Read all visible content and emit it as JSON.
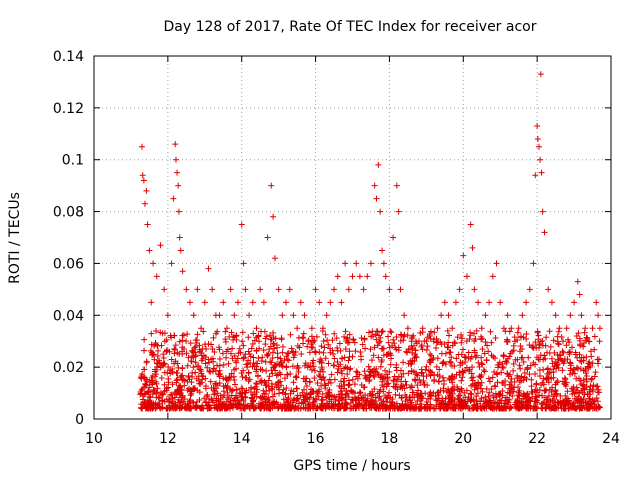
{
  "chart_data": {
    "type": "scatter",
    "title": "Day 128 of 2017, Rate Of TEC Index for receiver acor",
    "xlabel": "GPS time / hours",
    "ylabel": "ROTI / TECUs",
    "xlim": [
      10,
      24
    ],
    "ylim": [
      0,
      0.14
    ],
    "xticks": [
      "10",
      "12",
      "14",
      "16",
      "18",
      "20",
      "22",
      "24"
    ],
    "yticks": [
      "0",
      "0.02",
      "0.04",
      "0.06",
      "0.08",
      "0.1",
      "0.12",
      "0.14"
    ],
    "grid": true,
    "marker": "+",
    "color": "#e00000",
    "series": [
      {
        "name": "ROTI",
        "points": [
          [
            11.3,
            0.105
          ],
          [
            11.32,
            0.094
          ],
          [
            11.35,
            0.092
          ],
          [
            11.38,
            0.083
          ],
          [
            11.42,
            0.088
          ],
          [
            11.45,
            0.075
          ],
          [
            11.5,
            0.065
          ],
          [
            11.55,
            0.045
          ],
          [
            11.6,
            0.06
          ],
          [
            11.7,
            0.055
          ],
          [
            11.8,
            0.067
          ],
          [
            11.9,
            0.05
          ],
          [
            12.0,
            0.04
          ],
          [
            12.1,
            0.06
          ],
          [
            12.15,
            0.085
          ],
          [
            12.2,
            0.106
          ],
          [
            12.22,
            0.1
          ],
          [
            12.25,
            0.095
          ],
          [
            12.28,
            0.09
          ],
          [
            12.3,
            0.08
          ],
          [
            12.32,
            0.07
          ],
          [
            12.35,
            0.065
          ],
          [
            12.4,
            0.057
          ],
          [
            12.5,
            0.05
          ],
          [
            12.6,
            0.045
          ],
          [
            12.7,
            0.04
          ],
          [
            12.8,
            0.05
          ],
          [
            12.9,
            0.035
          ],
          [
            13.0,
            0.045
          ],
          [
            13.1,
            0.058
          ],
          [
            13.2,
            0.05
          ],
          [
            13.3,
            0.04
          ],
          [
            13.4,
            0.04
          ],
          [
            13.5,
            0.045
          ],
          [
            13.6,
            0.035
          ],
          [
            13.7,
            0.05
          ],
          [
            13.8,
            0.04
          ],
          [
            13.9,
            0.045
          ],
          [
            14.0,
            0.075
          ],
          [
            14.05,
            0.06
          ],
          [
            14.1,
            0.05
          ],
          [
            14.2,
            0.04
          ],
          [
            14.3,
            0.045
          ],
          [
            14.4,
            0.035
          ],
          [
            14.5,
            0.05
          ],
          [
            14.6,
            0.045
          ],
          [
            14.7,
            0.07
          ],
          [
            14.8,
            0.09
          ],
          [
            14.85,
            0.078
          ],
          [
            14.9,
            0.062
          ],
          [
            15.0,
            0.05
          ],
          [
            15.1,
            0.04
          ],
          [
            15.2,
            0.045
          ],
          [
            15.3,
            0.05
          ],
          [
            15.4,
            0.04
          ],
          [
            15.5,
            0.035
          ],
          [
            15.6,
            0.045
          ],
          [
            15.7,
            0.04
          ],
          [
            15.8,
            0.03
          ],
          [
            15.9,
            0.035
          ],
          [
            16.0,
            0.05
          ],
          [
            16.1,
            0.045
          ],
          [
            16.2,
            0.035
          ],
          [
            16.3,
            0.04
          ],
          [
            16.4,
            0.045
          ],
          [
            16.5,
            0.05
          ],
          [
            16.6,
            0.055
          ],
          [
            16.7,
            0.045
          ],
          [
            16.8,
            0.06
          ],
          [
            16.9,
            0.05
          ],
          [
            17.0,
            0.055
          ],
          [
            17.1,
            0.06
          ],
          [
            17.2,
            0.055
          ],
          [
            17.3,
            0.05
          ],
          [
            17.4,
            0.055
          ],
          [
            17.5,
            0.06
          ],
          [
            17.6,
            0.09
          ],
          [
            17.65,
            0.085
          ],
          [
            17.7,
            0.098
          ],
          [
            17.75,
            0.08
          ],
          [
            17.8,
            0.065
          ],
          [
            17.85,
            0.06
          ],
          [
            17.9,
            0.055
          ],
          [
            18.0,
            0.05
          ],
          [
            18.1,
            0.07
          ],
          [
            18.2,
            0.09
          ],
          [
            18.25,
            0.08
          ],
          [
            18.3,
            0.05
          ],
          [
            18.4,
            0.04
          ],
          [
            18.5,
            0.035
          ],
          [
            18.6,
            0.03
          ],
          [
            18.7,
            0.025
          ],
          [
            18.8,
            0.03
          ],
          [
            18.9,
            0.035
          ],
          [
            19.0,
            0.03
          ],
          [
            19.1,
            0.025
          ],
          [
            19.2,
            0.03
          ],
          [
            19.3,
            0.035
          ],
          [
            19.4,
            0.04
          ],
          [
            19.5,
            0.045
          ],
          [
            19.6,
            0.04
          ],
          [
            19.7,
            0.035
          ],
          [
            19.8,
            0.045
          ],
          [
            19.9,
            0.05
          ],
          [
            20.0,
            0.063
          ],
          [
            20.1,
            0.055
          ],
          [
            20.2,
            0.075
          ],
          [
            20.25,
            0.066
          ],
          [
            20.3,
            0.05
          ],
          [
            20.4,
            0.045
          ],
          [
            20.5,
            0.035
          ],
          [
            20.6,
            0.04
          ],
          [
            20.7,
            0.045
          ],
          [
            20.8,
            0.055
          ],
          [
            20.9,
            0.06
          ],
          [
            21.0,
            0.045
          ],
          [
            21.1,
            0.035
          ],
          [
            21.2,
            0.04
          ],
          [
            21.3,
            0.035
          ],
          [
            21.4,
            0.03
          ],
          [
            21.5,
            0.035
          ],
          [
            21.6,
            0.04
          ],
          [
            21.7,
            0.045
          ],
          [
            21.8,
            0.05
          ],
          [
            21.9,
            0.06
          ],
          [
            21.95,
            0.094
          ],
          [
            22.0,
            0.113
          ],
          [
            22.02,
            0.108
          ],
          [
            22.05,
            0.105
          ],
          [
            22.08,
            0.1
          ],
          [
            22.1,
            0.133
          ],
          [
            22.12,
            0.095
          ],
          [
            22.15,
            0.08
          ],
          [
            22.2,
            0.072
          ],
          [
            22.3,
            0.05
          ],
          [
            22.4,
            0.045
          ],
          [
            22.5,
            0.04
          ],
          [
            22.6,
            0.035
          ],
          [
            22.7,
            0.03
          ],
          [
            22.8,
            0.035
          ],
          [
            22.9,
            0.04
          ],
          [
            23.0,
            0.045
          ],
          [
            23.1,
            0.053
          ],
          [
            23.15,
            0.048
          ],
          [
            23.2,
            0.04
          ],
          [
            23.3,
            0.035
          ],
          [
            23.4,
            0.03
          ],
          [
            23.5,
            0.035
          ],
          [
            23.6,
            0.045
          ],
          [
            23.65,
            0.04
          ],
          [
            23.7,
            0.035
          ]
        ]
      }
    ]
  }
}
